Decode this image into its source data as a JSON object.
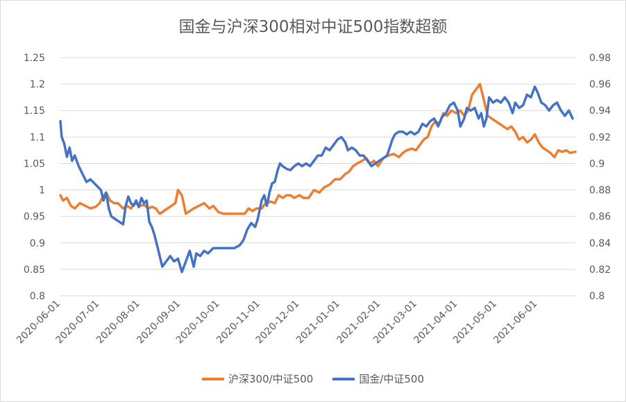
{
  "chart_data": {
    "type": "line",
    "title": "国金与沪深300相对中证500指数超额",
    "x_tick_labels": [
      "2020-06-01",
      "2020-07-01",
      "2020-08-01",
      "2020-09-01",
      "2020-10-01",
      "2020-11-01",
      "2020-12-01",
      "2021-01-01",
      "2021-02-01",
      "2021-03-01",
      "2021-04-01",
      "2021-05-01",
      "2021-06-01"
    ],
    "y_left": {
      "min": 0.8,
      "max": 1.25,
      "ticks": [
        "1.25",
        "1.2",
        "1.15",
        "1.1",
        "1.05",
        "1",
        "0.95",
        "0.9",
        "0.85",
        "0.8"
      ]
    },
    "y_right": {
      "min": 0.8,
      "max": 0.98,
      "ticks": [
        "0.98",
        "0.96",
        "0.94",
        "0.92",
        "0.9",
        "0.88",
        "0.86",
        "0.84",
        "0.82",
        "0.8"
      ]
    },
    "legend_position": "bottom",
    "grid": "horizontal",
    "series": [
      {
        "name": "沪深300/中证500",
        "axis": "left",
        "color": "#ED7D31",
        "points": [
          [
            "2020-06-01",
            0.99
          ],
          [
            "2020-06-03",
            0.98
          ],
          [
            "2020-06-06",
            0.985
          ],
          [
            "2020-06-09",
            0.97
          ],
          [
            "2020-06-12",
            0.965
          ],
          [
            "2020-06-16",
            0.975
          ],
          [
            "2020-06-20",
            0.97
          ],
          [
            "2020-06-24",
            0.965
          ],
          [
            "2020-06-28",
            0.968
          ],
          [
            "2020-07-01",
            0.975
          ],
          [
            "2020-07-03",
            0.985
          ],
          [
            "2020-07-06",
            0.995
          ],
          [
            "2020-07-09",
            0.98
          ],
          [
            "2020-07-12",
            0.975
          ],
          [
            "2020-07-15",
            0.975
          ],
          [
            "2020-07-19",
            0.965
          ],
          [
            "2020-07-22",
            0.97
          ],
          [
            "2020-07-25",
            0.965
          ],
          [
            "2020-07-28",
            0.975
          ],
          [
            "2020-08-01",
            0.97
          ],
          [
            "2020-08-04",
            0.972
          ],
          [
            "2020-08-07",
            0.965
          ],
          [
            "2020-08-10",
            0.968
          ],
          [
            "2020-08-13",
            0.965
          ],
          [
            "2020-08-16",
            0.955
          ],
          [
            "2020-08-19",
            0.96
          ],
          [
            "2020-08-22",
            0.965
          ],
          [
            "2020-08-25",
            0.97
          ],
          [
            "2020-08-28",
            0.975
          ],
          [
            "2020-08-30",
            1.0
          ],
          [
            "2020-09-02",
            0.99
          ],
          [
            "2020-09-05",
            0.955
          ],
          [
            "2020-09-08",
            0.96
          ],
          [
            "2020-09-11",
            0.965
          ],
          [
            "2020-09-15",
            0.97
          ],
          [
            "2020-09-19",
            0.975
          ],
          [
            "2020-09-23",
            0.965
          ],
          [
            "2020-09-26",
            0.97
          ],
          [
            "2020-09-30",
            0.958
          ],
          [
            "2020-10-04",
            0.955
          ],
          [
            "2020-10-10",
            0.955
          ],
          [
            "2020-10-16",
            0.955
          ],
          [
            "2020-10-20",
            0.955
          ],
          [
            "2020-10-23",
            0.965
          ],
          [
            "2020-10-26",
            0.96
          ],
          [
            "2020-10-29",
            0.965
          ],
          [
            "2020-11-02",
            0.965
          ],
          [
            "2020-11-05",
            0.975
          ],
          [
            "2020-11-09",
            0.978
          ],
          [
            "2020-11-12",
            0.975
          ],
          [
            "2020-11-15",
            0.99
          ],
          [
            "2020-11-18",
            0.985
          ],
          [
            "2020-11-21",
            0.99
          ],
          [
            "2020-11-24",
            0.99
          ],
          [
            "2020-11-27",
            0.985
          ],
          [
            "2020-12-01",
            0.99
          ],
          [
            "2020-12-04",
            0.985
          ],
          [
            "2020-12-08",
            0.985
          ],
          [
            "2020-12-12",
            1.0
          ],
          [
            "2020-12-16",
            0.995
          ],
          [
            "2020-12-20",
            1.005
          ],
          [
            "2020-12-24",
            1.01
          ],
          [
            "2020-12-28",
            1.02
          ],
          [
            "2021-01-01",
            1.02
          ],
          [
            "2021-01-05",
            1.03
          ],
          [
            "2021-01-08",
            1.035
          ],
          [
            "2021-01-11",
            1.045
          ],
          [
            "2021-01-14",
            1.05
          ],
          [
            "2021-01-18",
            1.055
          ],
          [
            "2021-01-21",
            1.06
          ],
          [
            "2021-01-24",
            1.05
          ],
          [
            "2021-01-27",
            1.055
          ],
          [
            "2021-01-30",
            1.045
          ],
          [
            "2021-02-03",
            1.06
          ],
          [
            "2021-02-07",
            1.065
          ],
          [
            "2021-02-11",
            1.068
          ],
          [
            "2021-02-15",
            1.062
          ],
          [
            "2021-02-18",
            1.07
          ],
          [
            "2021-02-21",
            1.075
          ],
          [
            "2021-02-25",
            1.078
          ],
          [
            "2021-02-28",
            1.075
          ],
          [
            "2021-03-03",
            1.085
          ],
          [
            "2021-03-06",
            1.095
          ],
          [
            "2021-03-09",
            1.1
          ],
          [
            "2021-03-12",
            1.12
          ],
          [
            "2021-03-15",
            1.13
          ],
          [
            "2021-03-18",
            1.125
          ],
          [
            "2021-03-21",
            1.145
          ],
          [
            "2021-03-24",
            1.14
          ],
          [
            "2021-03-27",
            1.15
          ],
          [
            "2021-03-31",
            1.145
          ],
          [
            "2021-04-03",
            1.15
          ],
          [
            "2021-04-06",
            1.14
          ],
          [
            "2021-04-09",
            1.15
          ],
          [
            "2021-04-12",
            1.18
          ],
          [
            "2021-04-15",
            1.19
          ],
          [
            "2021-04-18",
            1.2
          ],
          [
            "2021-04-21",
            1.17
          ],
          [
            "2021-04-24",
            1.14
          ],
          [
            "2021-04-27",
            1.135
          ],
          [
            "2021-04-30",
            1.13
          ],
          [
            "2021-05-03",
            1.125
          ],
          [
            "2021-05-06",
            1.12
          ],
          [
            "2021-05-09",
            1.115
          ],
          [
            "2021-05-12",
            1.12
          ],
          [
            "2021-05-15",
            1.11
          ],
          [
            "2021-05-18",
            1.095
          ],
          [
            "2021-05-21",
            1.1
          ],
          [
            "2021-05-24",
            1.09
          ],
          [
            "2021-05-27",
            1.095
          ],
          [
            "2021-05-30",
            1.105
          ],
          [
            "2021-06-02",
            1.09
          ],
          [
            "2021-06-05",
            1.08
          ],
          [
            "2021-06-08",
            1.075
          ],
          [
            "2021-06-11",
            1.07
          ],
          [
            "2021-06-14",
            1.062
          ],
          [
            "2021-06-17",
            1.075
          ],
          [
            "2021-06-20",
            1.072
          ],
          [
            "2021-06-23",
            1.075
          ],
          [
            "2021-06-26",
            1.07
          ],
          [
            "2021-06-30",
            1.072
          ]
        ]
      },
      {
        "name": "国金/中证500",
        "axis": "right",
        "color": "#4472C4",
        "points": [
          [
            "2020-06-01",
            0.932
          ],
          [
            "2020-06-02",
            0.92
          ],
          [
            "2020-06-04",
            0.915
          ],
          [
            "2020-06-06",
            0.905
          ],
          [
            "2020-06-08",
            0.912
          ],
          [
            "2020-06-10",
            0.902
          ],
          [
            "2020-06-12",
            0.906
          ],
          [
            "2020-06-15",
            0.898
          ],
          [
            "2020-06-18",
            0.892
          ],
          [
            "2020-06-21",
            0.886
          ],
          [
            "2020-06-24",
            0.888
          ],
          [
            "2020-06-28",
            0.884
          ],
          [
            "2020-07-02",
            0.88
          ],
          [
            "2020-07-04",
            0.872
          ],
          [
            "2020-07-06",
            0.878
          ],
          [
            "2020-07-08",
            0.866
          ],
          [
            "2020-07-10",
            0.86
          ],
          [
            "2020-07-13",
            0.858
          ],
          [
            "2020-07-16",
            0.856
          ],
          [
            "2020-07-19",
            0.854
          ],
          [
            "2020-07-21",
            0.868
          ],
          [
            "2020-07-23",
            0.875
          ],
          [
            "2020-07-25",
            0.87
          ],
          [
            "2020-07-27",
            0.868
          ],
          [
            "2020-07-29",
            0.872
          ],
          [
            "2020-07-31",
            0.867
          ],
          [
            "2020-08-02",
            0.874
          ],
          [
            "2020-08-04",
            0.87
          ],
          [
            "2020-08-06",
            0.872
          ],
          [
            "2020-08-08",
            0.856
          ],
          [
            "2020-08-10",
            0.852
          ],
          [
            "2020-08-12",
            0.846
          ],
          [
            "2020-08-14",
            0.838
          ],
          [
            "2020-08-16",
            0.83
          ],
          [
            "2020-08-18",
            0.822
          ],
          [
            "2020-08-21",
            0.826
          ],
          [
            "2020-08-24",
            0.83
          ],
          [
            "2020-08-27",
            0.826
          ],
          [
            "2020-08-30",
            0.828
          ],
          [
            "2020-09-02",
            0.818
          ],
          [
            "2020-09-05",
            0.826
          ],
          [
            "2020-09-08",
            0.834
          ],
          [
            "2020-09-11",
            0.822
          ],
          [
            "2020-09-13",
            0.832
          ],
          [
            "2020-09-16",
            0.83
          ],
          [
            "2020-09-19",
            0.834
          ],
          [
            "2020-09-22",
            0.832
          ],
          [
            "2020-09-26",
            0.836
          ],
          [
            "2020-09-30",
            0.836
          ],
          [
            "2020-10-04",
            0.836
          ],
          [
            "2020-10-08",
            0.836
          ],
          [
            "2020-10-12",
            0.836
          ],
          [
            "2020-10-16",
            0.838
          ],
          [
            "2020-10-19",
            0.842
          ],
          [
            "2020-10-22",
            0.85
          ],
          [
            "2020-10-25",
            0.855
          ],
          [
            "2020-10-28",
            0.852
          ],
          [
            "2020-10-30",
            0.858
          ],
          [
            "2020-11-02",
            0.872
          ],
          [
            "2020-11-04",
            0.876
          ],
          [
            "2020-11-06",
            0.868
          ],
          [
            "2020-11-08",
            0.878
          ],
          [
            "2020-11-10",
            0.885
          ],
          [
            "2020-11-12",
            0.886
          ],
          [
            "2020-11-14",
            0.894
          ],
          [
            "2020-11-16",
            0.9
          ],
          [
            "2020-11-18",
            0.898
          ],
          [
            "2020-11-21",
            0.896
          ],
          [
            "2020-11-24",
            0.895
          ],
          [
            "2020-11-27",
            0.898
          ],
          [
            "2020-11-30",
            0.9
          ],
          [
            "2020-12-03",
            0.898
          ],
          [
            "2020-12-06",
            0.9
          ],
          [
            "2020-12-09",
            0.898
          ],
          [
            "2020-12-12",
            0.902
          ],
          [
            "2020-12-15",
            0.906
          ],
          [
            "2020-12-18",
            0.906
          ],
          [
            "2020-12-21",
            0.912
          ],
          [
            "2020-12-24",
            0.91
          ],
          [
            "2020-12-27",
            0.914
          ],
          [
            "2020-12-30",
            0.918
          ],
          [
            "2021-01-02",
            0.92
          ],
          [
            "2021-01-05",
            0.916
          ],
          [
            "2021-01-07",
            0.91
          ],
          [
            "2021-01-10",
            0.912
          ],
          [
            "2021-01-13",
            0.91
          ],
          [
            "2021-01-16",
            0.906
          ],
          [
            "2021-01-19",
            0.906
          ],
          [
            "2021-01-22",
            0.902
          ],
          [
            "2021-01-25",
            0.898
          ],
          [
            "2021-01-28",
            0.9
          ],
          [
            "2021-01-31",
            0.902
          ],
          [
            "2021-02-03",
            0.904
          ],
          [
            "2021-02-06",
            0.906
          ],
          [
            "2021-02-08",
            0.912
          ],
          [
            "2021-02-10",
            0.918
          ],
          [
            "2021-02-12",
            0.922
          ],
          [
            "2021-02-15",
            0.924
          ],
          [
            "2021-02-18",
            0.924
          ],
          [
            "2021-02-21",
            0.922
          ],
          [
            "2021-02-24",
            0.924
          ],
          [
            "2021-02-27",
            0.922
          ],
          [
            "2021-03-02",
            0.924
          ],
          [
            "2021-03-05",
            0.93
          ],
          [
            "2021-03-08",
            0.928
          ],
          [
            "2021-03-11",
            0.932
          ],
          [
            "2021-03-14",
            0.934
          ],
          [
            "2021-03-17",
            0.928
          ],
          [
            "2021-03-20",
            0.935
          ],
          [
            "2021-03-23",
            0.938
          ],
          [
            "2021-03-26",
            0.944
          ],
          [
            "2021-03-29",
            0.946
          ],
          [
            "2021-04-01",
            0.94
          ],
          [
            "2021-04-03",
            0.928
          ],
          [
            "2021-04-06",
            0.934
          ],
          [
            "2021-04-08",
            0.942
          ],
          [
            "2021-04-11",
            0.94
          ],
          [
            "2021-04-14",
            0.942
          ],
          [
            "2021-04-17",
            0.934
          ],
          [
            "2021-04-19",
            0.938
          ],
          [
            "2021-04-21",
            0.928
          ],
          [
            "2021-04-23",
            0.934
          ],
          [
            "2021-04-25",
            0.95
          ],
          [
            "2021-04-28",
            0.946
          ],
          [
            "2021-05-01",
            0.948
          ],
          [
            "2021-05-04",
            0.946
          ],
          [
            "2021-05-07",
            0.95
          ],
          [
            "2021-05-10",
            0.946
          ],
          [
            "2021-05-13",
            0.938
          ],
          [
            "2021-05-15",
            0.946
          ],
          [
            "2021-05-18",
            0.942
          ],
          [
            "2021-05-21",
            0.944
          ],
          [
            "2021-05-24",
            0.952
          ],
          [
            "2021-05-27",
            0.95
          ],
          [
            "2021-05-30",
            0.958
          ],
          [
            "2021-06-01",
            0.954
          ],
          [
            "2021-06-04",
            0.946
          ],
          [
            "2021-06-07",
            0.944
          ],
          [
            "2021-06-10",
            0.94
          ],
          [
            "2021-06-13",
            0.944
          ],
          [
            "2021-06-16",
            0.946
          ],
          [
            "2021-06-19",
            0.94
          ],
          [
            "2021-06-22",
            0.936
          ],
          [
            "2021-06-25",
            0.94
          ],
          [
            "2021-06-28",
            0.934
          ]
        ]
      }
    ]
  }
}
